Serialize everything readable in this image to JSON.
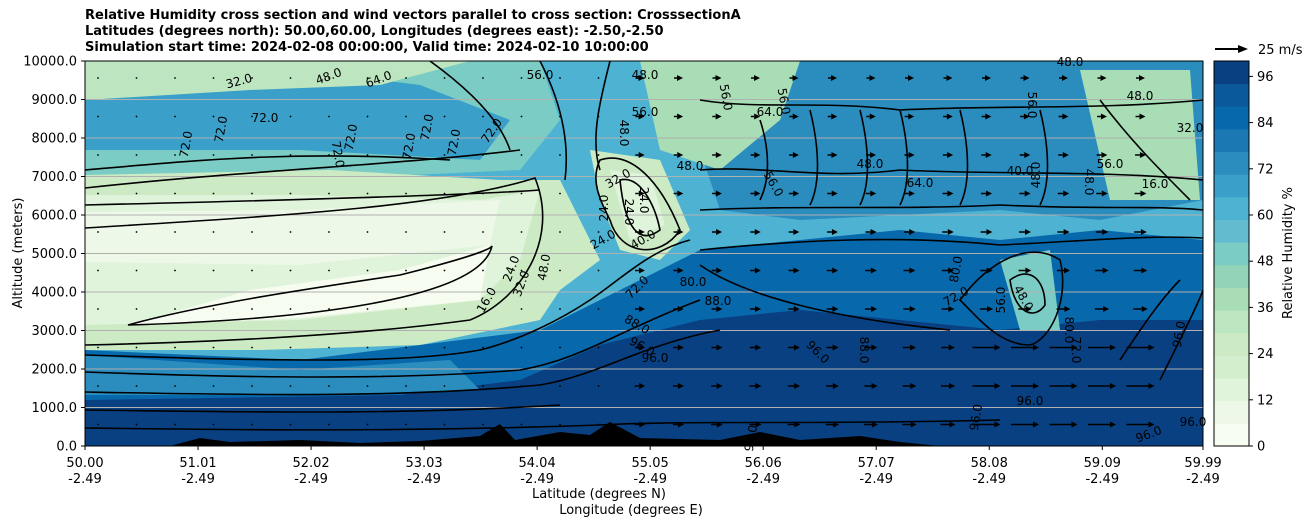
{
  "chart_data": {
    "type": "heatmap",
    "title_lines": [
      "Relative Humidity cross section and wind vectors parallel to cross section: CrosssectionA",
      "Latitudes (degrees north): 50.00,60.00, Longitudes (degrees east): -2.50,-2.50",
      "Simulation start time: 2024-02-08 00:00:00, Valid time: 2024-02-10 10:00:00"
    ],
    "ylabel": "Altitude (meters)",
    "xlabel_lines": [
      "Latitude (degrees N)",
      "Longitude (degrees E)"
    ],
    "y_ticks": [
      "0.0",
      "1000.0",
      "2000.0",
      "3000.0",
      "4000.0",
      "5000.0",
      "6000.0",
      "7000.0",
      "8000.0",
      "9000.0",
      "10000.0"
    ],
    "ylim": [
      0,
      10000
    ],
    "x_ticks": [
      {
        "lat": "50.00",
        "lon": "-2.49"
      },
      {
        "lat": "51.01",
        "lon": "-2.49"
      },
      {
        "lat": "52.02",
        "lon": "-2.49"
      },
      {
        "lat": "53.03",
        "lon": "-2.49"
      },
      {
        "lat": "54.04",
        "lon": "-2.49"
      },
      {
        "lat": "55.05",
        "lon": "-2.49"
      },
      {
        "lat": "56.06",
        "lon": "-2.49"
      },
      {
        "lat": "57.07",
        "lon": "-2.49"
      },
      {
        "lat": "58.08",
        "lon": "-2.49"
      },
      {
        "lat": "59.09",
        "lon": "-2.49"
      },
      {
        "lat": "59.99",
        "lon": "-2.49"
      }
    ],
    "xlim": [
      50.0,
      59.99
    ],
    "colorbar": {
      "label": "Relative Humidity %",
      "ticks": [
        "0",
        "12",
        "24",
        "36",
        "48",
        "60",
        "72",
        "84",
        "96"
      ],
      "range": [
        0,
        100
      ],
      "colors": [
        "#f7fcf0",
        "#eef8e8",
        "#e0f3db",
        "#d3eecd",
        "#ccebc5",
        "#bde5bf",
        "#a8ddb5",
        "#93d4b9",
        "#7bccc4",
        "#63bbcf",
        "#4eb3d3",
        "#3aa0c9",
        "#2b8cbe",
        "#1c78b3",
        "#0868ac",
        "#0a5a9b",
        "#084081"
      ]
    },
    "contour_labels": [
      "16.0",
      "24.0",
      "32.0",
      "40.0",
      "48.0",
      "56.0",
      "64.0",
      "72.0",
      "80.0",
      "88.0",
      "96.0"
    ],
    "wind_key": {
      "label": "25 m/s",
      "speed": 25
    },
    "grid": "horizontal"
  }
}
